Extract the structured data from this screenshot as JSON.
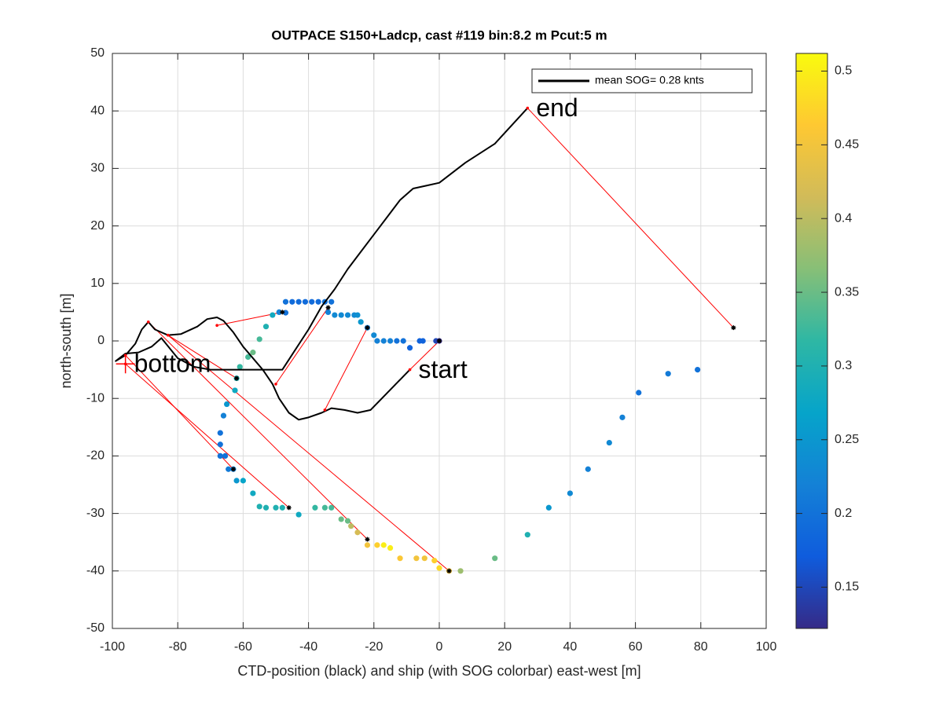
{
  "chart_data": {
    "type": "scatter",
    "title": "OUTPACE S150+Ladcp, cast #119 bin:8.2 m  Pcut:5 m",
    "xlabel": "CTD-position (black) and ship (with SOG colorbar) east-west [m]",
    "ylabel": "north-south [m]",
    "xlim": [
      -100,
      100
    ],
    "ylim": [
      -50,
      50
    ],
    "xticks": [
      -100,
      -80,
      -60,
      -40,
      -20,
      0,
      20,
      40,
      60,
      80,
      100
    ],
    "yticks": [
      -50,
      -40,
      -30,
      -20,
      -10,
      0,
      10,
      20,
      30,
      40,
      50
    ],
    "grid": true,
    "legend": "upper right",
    "ctd_track": {
      "name": "mean SOG=  0.28 knts",
      "color": "#000000",
      "x": [
        -9,
        -15,
        -21,
        -25,
        -29,
        -33,
        -36,
        -40,
        -43,
        -46,
        -49,
        -51,
        -54,
        -57,
        -60,
        -63,
        -66,
        -68,
        -71,
        -74,
        -79,
        -83,
        -87,
        -89,
        -91,
        -93,
        -96,
        -99,
        -96,
        -92,
        -88,
        -85,
        -80,
        -75,
        -70,
        -65,
        -60,
        -55,
        -48,
        -44,
        -40,
        -36,
        -32,
        -28,
        -24,
        -20,
        -16,
        -12,
        -8,
        -4,
        0,
        8,
        17,
        27
      ],
      "y": [
        -5,
        -8.5,
        -12,
        -12.5,
        -12,
        -11.7,
        -12.5,
        -13.3,
        -13.7,
        -12.5,
        -10,
        -7.5,
        -5,
        -3,
        -1,
        1.5,
        3.5,
        4.1,
        3.8,
        2.5,
        1.2,
        1,
        2,
        3.3,
        2,
        -0.5,
        -2.5,
        -3.5,
        -2.2,
        -2,
        -1,
        0.5,
        -3,
        -4.5,
        -5,
        -5,
        -5,
        -5,
        -5,
        -1.5,
        2,
        6,
        9,
        12.5,
        15.5,
        18.5,
        21.5,
        24.5,
        26.5,
        27,
        27.5,
        31,
        34.3,
        40.5
      ]
    },
    "ship": {
      "x": [
        79,
        70,
        61,
        56,
        52,
        45.5,
        40,
        33.5,
        27,
        17,
        6.5,
        3,
        0,
        -1.5,
        -4.5,
        -7,
        -12,
        -15,
        -17,
        -19,
        -22,
        -25,
        -27,
        -28,
        -30,
        -33,
        -35,
        -38,
        -43,
        -48,
        -50,
        -53,
        -55,
        -57,
        -60,
        -62,
        -63,
        -64.5,
        -65.5,
        -67,
        -67,
        -67,
        -66,
        -65,
        -62.5,
        -62,
        -61,
        -58.5,
        -57,
        -55,
        -53,
        -51,
        -49,
        -47,
        -47,
        -45,
        -43,
        -41,
        -39,
        -37,
        -35,
        -33,
        -34,
        -32,
        -30,
        -28,
        -26,
        -25,
        -24,
        -22,
        -20,
        -19,
        -17,
        -15,
        -13,
        -11,
        -9,
        -6,
        -5,
        -1,
        0
      ],
      "y": [
        -5,
        -5.7,
        -9,
        -13.3,
        -17.7,
        -22.3,
        -26.5,
        -29,
        -33.7,
        -37.8,
        -40,
        -40,
        -39.5,
        -38.2,
        -37.8,
        -37.8,
        -37.8,
        -36,
        -35.5,
        -35.5,
        -35.5,
        -33.3,
        -32.2,
        -31.3,
        -31,
        -29,
        -29,
        -29,
        -30.2,
        -29,
        -29,
        -29,
        -28.8,
        -26.5,
        -24.3,
        -24.3,
        -22.3,
        -22.3,
        -20,
        -20,
        -18,
        -16,
        -13,
        -11,
        -8.6,
        -6.5,
        -4.5,
        -2.8,
        -2,
        0.3,
        2.5,
        4.5,
        5,
        4.9,
        6.8,
        6.8,
        6.8,
        6.8,
        6.8,
        6.8,
        6.8,
        6.8,
        5,
        4.5,
        4.5,
        4.5,
        4.5,
        4.5,
        3.3,
        2.3,
        1,
        0,
        0,
        0,
        0,
        0,
        -1.2,
        0,
        0,
        0,
        0
      ],
      "values": [
        0.2,
        0.21,
        0.2,
        0.22,
        0.23,
        0.22,
        0.23,
        0.25,
        0.3,
        0.35,
        0.38,
        0.45,
        0.48,
        0.47,
        0.45,
        0.45,
        0.46,
        0.5,
        0.5,
        0.47,
        0.45,
        0.42,
        0.4,
        0.35,
        0.35,
        0.33,
        0.33,
        0.32,
        0.28,
        0.3,
        0.3,
        0.3,
        0.3,
        0.28,
        0.27,
        0.25,
        0.22,
        0.21,
        0.2,
        0.2,
        0.2,
        0.2,
        0.22,
        0.25,
        0.28,
        0.3,
        0.32,
        0.33,
        0.35,
        0.33,
        0.3,
        0.28,
        0.22,
        0.2,
        0.2,
        0.19,
        0.19,
        0.19,
        0.19,
        0.19,
        0.2,
        0.2,
        0.22,
        0.23,
        0.23,
        0.23,
        0.23,
        0.24,
        0.25,
        0.22,
        0.23,
        0.22,
        0.22,
        0.22,
        0.2,
        0.2,
        0.18,
        0.18,
        0.18,
        0.15,
        0.12
      ],
      "colormap": [
        "#352a87",
        "#0f5cdd",
        "#1481d6",
        "#06a4ca",
        "#2eb7a4",
        "#87bf77",
        "#d1bb59",
        "#fec832",
        "#f9fb0e"
      ]
    },
    "links": [
      {
        "x": [
          27,
          90
        ],
        "y": [
          40.5,
          2.3
        ]
      },
      {
        "x": [
          -9,
          0
        ],
        "y": [
          -5,
          0
        ]
      },
      {
        "x": [
          -35,
          -22
        ],
        "y": [
          -12,
          2.3
        ]
      },
      {
        "x": [
          -50,
          -34
        ],
        "y": [
          -7.5,
          5.8
        ]
      },
      {
        "x": [
          -68,
          -48
        ],
        "y": [
          2.7,
          5
        ]
      },
      {
        "x": [
          -83,
          -62
        ],
        "y": [
          1,
          -6.5
        ]
      },
      {
        "x": [
          -96,
          -63
        ],
        "y": [
          -2.5,
          -22.3
        ]
      },
      {
        "x": [
          -96,
          -46
        ],
        "y": [
          -4,
          -29
        ]
      },
      {
        "x": [
          -89,
          -22
        ],
        "y": [
          3.3,
          -34.5
        ]
      },
      {
        "x": [
          -83,
          3
        ],
        "y": [
          1,
          -40
        ]
      }
    ],
    "link_color": "#ff0000",
    "stars": {
      "x": [
        90,
        0,
        -22,
        -34,
        -48,
        -62,
        -63,
        -46,
        -22,
        3
      ],
      "y": [
        2.3,
        0,
        2.3,
        5.8,
        5,
        -6.5,
        -22.3,
        -29,
        -34.5,
        -40
      ],
      "color": "#000000"
    },
    "bottom_marker": {
      "x": -96,
      "y": -4,
      "color": "#ff0000"
    },
    "annotations": [
      {
        "text": "end",
        "x": 27,
        "y": 40.5
      },
      {
        "text": "start",
        "x": -9,
        "y": -5
      },
      {
        "text": "bottom",
        "x": -96,
        "y": -4
      }
    ],
    "colorbar": {
      "lim": [
        0.122,
        0.512
      ],
      "ticks": [
        0.15,
        0.2,
        0.25,
        0.3,
        0.35,
        0.4,
        0.45,
        0.5
      ]
    }
  }
}
